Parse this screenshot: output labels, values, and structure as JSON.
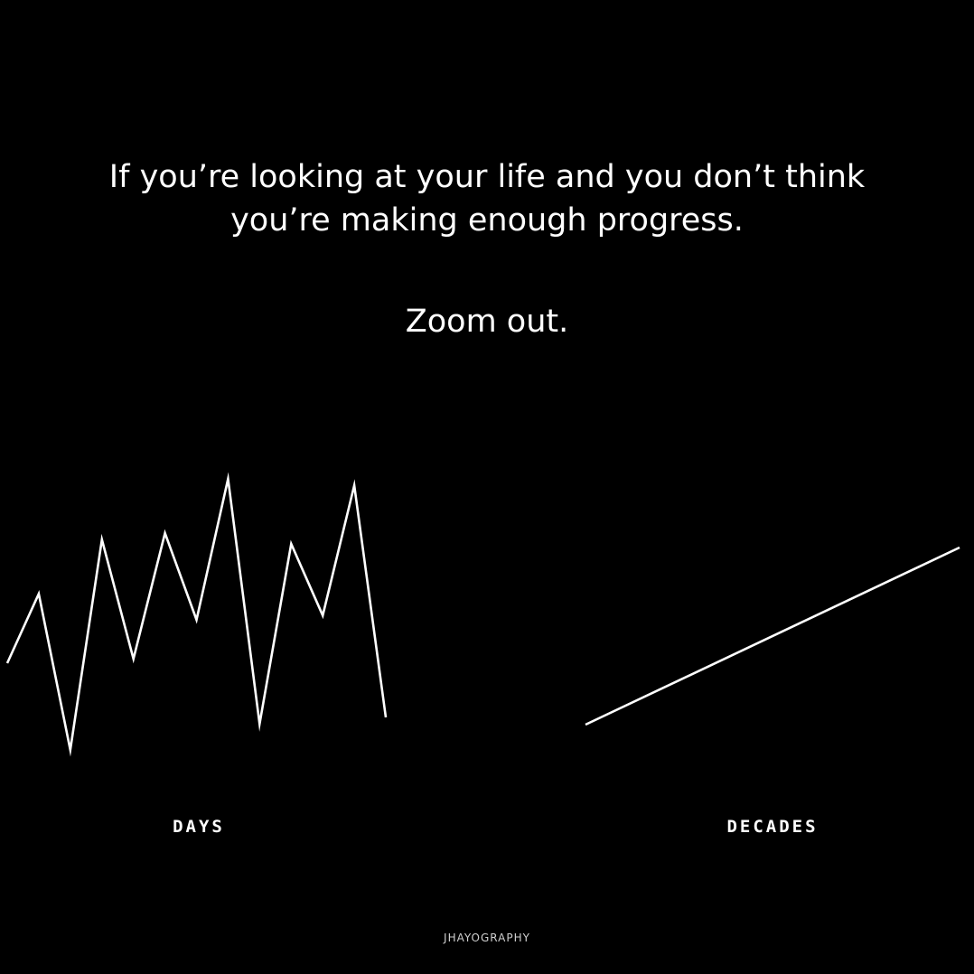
{
  "quote": {
    "line1": "If you’re looking at your life and you don’t think",
    "line2": "you’re making enough progress.",
    "line3": "Zoom out."
  },
  "colors": {
    "background": "#000000",
    "foreground": "#ffffff"
  },
  "chart_data": [
    {
      "type": "line",
      "xlabel": "DAYS",
      "x": [
        0,
        1,
        2,
        3,
        4,
        5,
        6,
        7,
        8,
        9,
        10,
        11,
        12
      ],
      "values": [
        40,
        72,
        0,
        97,
        42,
        100,
        60,
        125,
        12,
        95,
        62,
        122,
        15
      ],
      "ylim": [
        0,
        125
      ],
      "grid": false
    },
    {
      "type": "line",
      "xlabel": "DECADES",
      "x": [
        0,
        1
      ],
      "values": [
        0,
        100
      ],
      "ylim": [
        0,
        100
      ],
      "grid": false
    }
  ],
  "watermark": "JHAYOGRAPHY"
}
